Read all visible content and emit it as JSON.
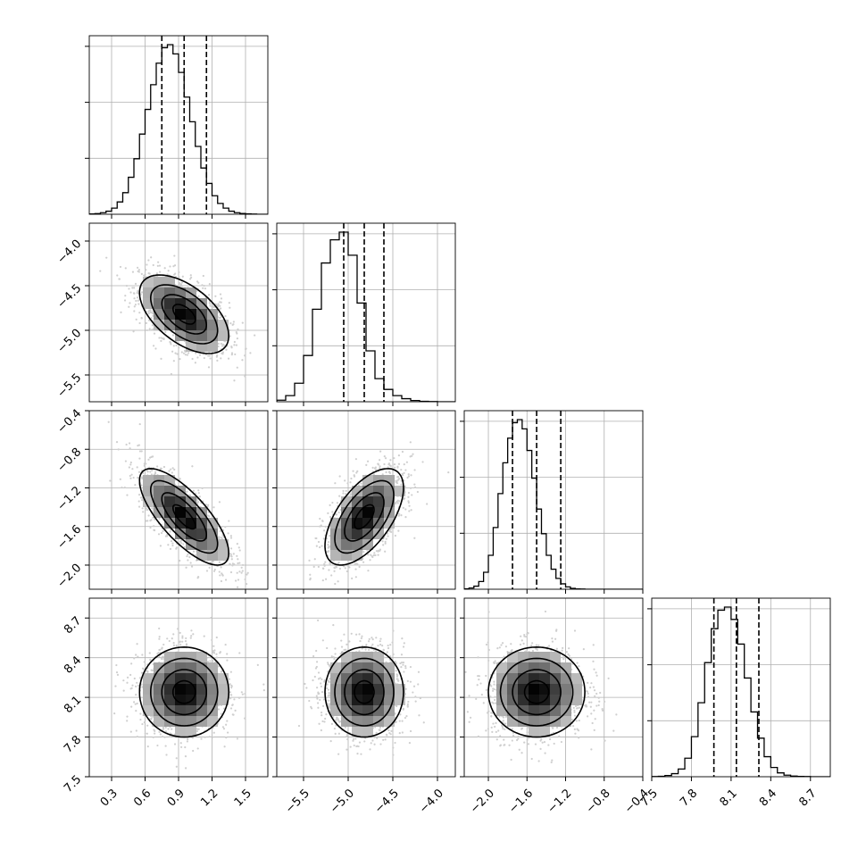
{
  "chart_data": {
    "type": "corner",
    "parameters": [
      {
        "index": 0,
        "range": [
          0.1,
          1.7
        ],
        "ticks": [
          "0.3",
          "0.6",
          "0.9",
          "1.2",
          "1.5"
        ],
        "tick_values": [
          0.3,
          0.6,
          0.9,
          1.2,
          1.5
        ],
        "quantiles": [
          0.75,
          0.95,
          1.15
        ],
        "mean": 0.95,
        "sd": 0.2
      },
      {
        "index": 1,
        "range": [
          -5.8,
          -3.8
        ],
        "ticks": [
          "−5.5",
          "−5.0",
          "−4.5",
          "−4.0"
        ],
        "tick_values": [
          -5.5,
          -5.0,
          -4.5,
          -4.0
        ],
        "quantiles": [
          -5.05,
          -4.82,
          -4.6
        ],
        "mean": -4.82,
        "sd": 0.22
      },
      {
        "index": 2,
        "range": [
          -2.25,
          -0.4
        ],
        "ticks": [
          "−2.0",
          "−1.6",
          "−1.2",
          "−0.8",
          "−0.4"
        ],
        "tick_values": [
          -2.0,
          -1.6,
          -1.2,
          -0.8,
          -0.4
        ],
        "quantiles": [
          -1.75,
          -1.5,
          -1.25
        ],
        "mean": -1.5,
        "sd": 0.25
      },
      {
        "index": 3,
        "range": [
          7.5,
          8.85
        ],
        "ticks": [
          "7.5",
          "7.8",
          "8.1",
          "8.4",
          "8.7"
        ],
        "tick_values": [
          7.5,
          7.8,
          8.1,
          8.4,
          8.7
        ],
        "quantiles": [
          7.97,
          8.14,
          8.31
        ],
        "mean": 8.14,
        "sd": 0.17
      }
    ],
    "correlations": {
      "1_0": -0.55,
      "2_0": -0.75,
      "2_1": 0.6,
      "3_0": 0.0,
      "3_1": 0.0,
      "3_2": 0.0
    },
    "histograms": [
      {
        "bins": [
          0.1,
          0.15,
          0.2,
          0.25,
          0.3,
          0.35,
          0.4,
          0.45,
          0.5,
          0.55,
          0.6,
          0.65,
          0.7,
          0.75,
          0.8,
          0.85,
          0.9,
          0.95,
          1.0,
          1.05,
          1.1,
          1.15,
          1.2,
          1.25,
          1.3,
          1.35,
          1.4,
          1.45,
          1.5,
          1.55,
          1.6,
          1.65,
          1.7
        ],
        "counts": [
          2,
          4,
          10,
          20,
          40,
          80,
          140,
          240,
          360,
          520,
          680,
          840,
          980,
          1080,
          1100,
          1040,
          920,
          760,
          600,
          440,
          300,
          200,
          120,
          70,
          40,
          20,
          10,
          5,
          3,
          1,
          0,
          0
        ]
      },
      {
        "bins": [
          -5.8,
          -5.7,
          -5.6,
          -5.5,
          -5.4,
          -5.3,
          -5.2,
          -5.1,
          -5.0,
          -4.9,
          -4.8,
          -4.7,
          -4.6,
          -4.5,
          -4.4,
          -4.3,
          -4.2,
          -4.1,
          -4.0,
          -3.9,
          -3.8
        ],
        "counts": [
          10,
          40,
          120,
          300,
          600,
          900,
          1050,
          1100,
          950,
          640,
          330,
          150,
          80,
          40,
          20,
          8,
          3,
          1,
          0,
          0
        ]
      },
      {
        "bins": [
          -2.25,
          -2.2,
          -2.15,
          -2.1,
          -2.05,
          -2.0,
          -1.95,
          -1.9,
          -1.85,
          -1.8,
          -1.75,
          -1.7,
          -1.65,
          -1.6,
          -1.55,
          -1.5,
          -1.45,
          -1.4,
          -1.35,
          -1.3,
          -1.25,
          -1.2,
          -1.15,
          -1.1,
          -1.05,
          -1.0,
          -0.95,
          -0.9,
          -0.85,
          -0.8,
          -0.75,
          -0.7,
          -0.65,
          -0.6,
          -0.55,
          -0.5,
          -0.45,
          -0.4
        ],
        "counts": [
          3,
          8,
          20,
          50,
          110,
          220,
          400,
          620,
          820,
          980,
          1080,
          1100,
          1040,
          900,
          720,
          520,
          360,
          220,
          130,
          70,
          35,
          15,
          6,
          2,
          1,
          0,
          0,
          0,
          0,
          0,
          0,
          0,
          0,
          0,
          0,
          0,
          0
        ]
      },
      {
        "bins": [
          7.5,
          7.55,
          7.6,
          7.65,
          7.7,
          7.75,
          7.8,
          7.85,
          7.9,
          7.95,
          8.0,
          8.05,
          8.1,
          8.15,
          8.2,
          8.25,
          8.3,
          8.35,
          8.4,
          8.45,
          8.5,
          8.55,
          8.6,
          8.65,
          8.7,
          8.75,
          8.8,
          8.85
        ],
        "counts": [
          1,
          3,
          8,
          20,
          50,
          120,
          260,
          480,
          740,
          960,
          1080,
          1100,
          1020,
          860,
          640,
          420,
          250,
          130,
          60,
          25,
          10,
          4,
          2,
          1,
          0,
          0,
          0
        ]
      }
    ]
  }
}
